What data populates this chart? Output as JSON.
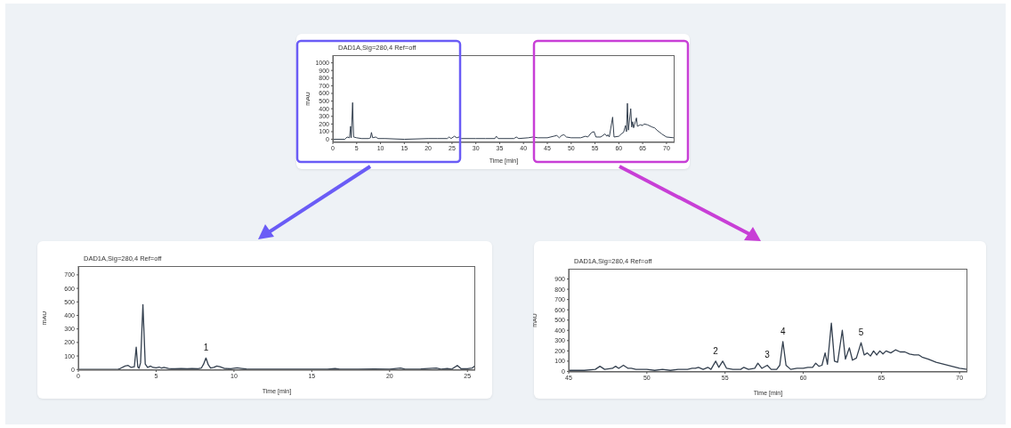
{
  "chart_data": [
    {
      "type": "line",
      "title": "DAD1A,Sig=280,4  Ref=off",
      "xlabel": "Time [min]",
      "ylabel": "mAU",
      "marker": "none",
      "xlim": [
        0,
        71.7
      ],
      "ylim": [
        -40,
        1100
      ],
      "xticks": [
        0,
        5,
        10,
        15,
        20,
        25,
        30,
        35,
        40,
        45,
        50,
        55,
        60,
        65,
        70
      ],
      "yticks": [
        0,
        100,
        200,
        300,
        400,
        500,
        600,
        700,
        800,
        900,
        1000
      ],
      "x": [
        0,
        2.5,
        3,
        3.5,
        3.72,
        3.85,
        4.15,
        4.35,
        5,
        6,
        7.5,
        7.9,
        8.1,
        8.35,
        9,
        9.5,
        11,
        15,
        20,
        22,
        24,
        24.4,
        24.8,
        25.5,
        26,
        26.5,
        27,
        30,
        32,
        34,
        34.3,
        34.7,
        38,
        38.5,
        39,
        41,
        42,
        43,
        45,
        47,
        47.5,
        48,
        48.5,
        49,
        50,
        52,
        53,
        53.5,
        54.3,
        54.8,
        55.2,
        56.2,
        57.1,
        57.5,
        57.7,
        58,
        58.7,
        59,
        60,
        60.7,
        61,
        61.4,
        61.6,
        61.8,
        62,
        62.5,
        62.7,
        62.9,
        63.1,
        63.7,
        63.9,
        64.5,
        65,
        65.3,
        66,
        67,
        67.5,
        68,
        69,
        70,
        71.5
      ],
      "series": [
        {
          "color": "#34404f",
          "values": [
            0,
            0,
            30,
            20,
            170,
            20,
            480,
            30,
            20,
            10,
            10,
            20,
            90,
            20,
            30,
            10,
            10,
            0,
            10,
            10,
            10,
            30,
            10,
            40,
            20,
            30,
            10,
            10,
            10,
            10,
            40,
            10,
            10,
            30,
            10,
            20,
            30,
            20,
            20,
            50,
            20,
            50,
            60,
            30,
            20,
            20,
            40,
            30,
            90,
            100,
            30,
            30,
            70,
            40,
            60,
            30,
            290,
            30,
            40,
            80,
            90,
            180,
            100,
            470,
            120,
            400,
            160,
            230,
            150,
            280,
            170,
            190,
            180,
            200,
            190,
            160,
            150,
            120,
            70,
            30,
            20
          ]
        }
      ]
    },
    {
      "type": "line",
      "title": "DAD1A,Sig=280,4  Ref=off",
      "xlabel": "Time [min]",
      "ylabel": "mAU",
      "marker": "none",
      "xlim": [
        0,
        25.5
      ],
      "ylim": [
        -5,
        765
      ],
      "xticks": [
        0,
        5,
        10,
        15,
        20,
        25
      ],
      "yticks": [
        0,
        100,
        200,
        300,
        400,
        500,
        600,
        700
      ],
      "annotations": [
        {
          "text": "1",
          "x": 8.2,
          "y": 85
        }
      ],
      "x": [
        0,
        2.5,
        2.7,
        3.0,
        3.2,
        3.4,
        3.6,
        3.72,
        3.82,
        3.9,
        4.0,
        4.15,
        4.3,
        4.45,
        4.65,
        4.8,
        5.0,
        5.2,
        5.35,
        5.5,
        5.8,
        6.2,
        6.6,
        7.0,
        7.3,
        7.7,
        7.9,
        8.05,
        8.2,
        8.35,
        8.5,
        8.7,
        8.9,
        9.1,
        9.4,
        9.8,
        10.2,
        10.5,
        10.8,
        11.5,
        12.5,
        13.5,
        15,
        16.0,
        16.5,
        16.8,
        18,
        19,
        20,
        20.7,
        21,
        22,
        23,
        23.3,
        23.7,
        24.0,
        24.35,
        24.6,
        25,
        25.3,
        25.5
      ],
      "series": [
        {
          "color": "#34404f",
          "values": [
            0,
            0,
            8,
            25,
            30,
            15,
            20,
            165,
            20,
            10,
            50,
            480,
            40,
            15,
            25,
            15,
            12,
            18,
            10,
            15,
            8,
            5,
            8,
            5,
            8,
            5,
            10,
            40,
            85,
            35,
            10,
            15,
            25,
            20,
            8,
            5,
            12,
            8,
            4,
            3,
            3,
            2,
            2,
            3,
            8,
            3,
            3,
            4,
            3,
            10,
            3,
            4,
            10,
            3,
            8,
            3,
            30,
            5,
            5,
            10,
            30
          ]
        }
      ]
    },
    {
      "type": "line",
      "title": "DAD1A,Sig=280,4  Ref=off",
      "xlabel": "Time [min]",
      "ylabel": "mAU",
      "marker": "none",
      "xlim": [
        45,
        70.5
      ],
      "ylim": [
        -5,
        1000
      ],
      "xticks": [
        45,
        50,
        55,
        60,
        65,
        70
      ],
      "yticks": [
        0,
        100,
        200,
        300,
        400,
        500,
        600,
        700,
        800,
        900
      ],
      "annotations": [
        {
          "text": "2",
          "x": 54.4,
          "y": 100
        },
        {
          "text": "3",
          "x": 57.7,
          "y": 60
        },
        {
          "text": "4",
          "x": 58.7,
          "y": 290
        },
        {
          "text": "5",
          "x": 63.7,
          "y": 280
        }
      ],
      "x": [
        45,
        46,
        46.7,
        47,
        47.3,
        47.8,
        48,
        48.2,
        48.5,
        48.8,
        49,
        49.3,
        50,
        50.5,
        51,
        51.5,
        52,
        52.6,
        52.9,
        53.1,
        53.3,
        53.6,
        53.9,
        54.1,
        54.4,
        54.6,
        54.85,
        55.1,
        55.5,
        56,
        56.2,
        56.5,
        56.9,
        57.1,
        57.35,
        57.7,
        57.95,
        58.3,
        58.5,
        58.7,
        58.9,
        59.2,
        59.6,
        60,
        60.3,
        60.6,
        60.8,
        61,
        61.2,
        61.4,
        61.55,
        61.8,
        62,
        62.2,
        62.5,
        62.7,
        62.95,
        63.15,
        63.4,
        63.7,
        63.9,
        64.1,
        64.3,
        64.5,
        64.7,
        64.9,
        65.1,
        65.3,
        65.6,
        65.9,
        66.2,
        66.5,
        66.8,
        67.1,
        67.4,
        67.6,
        68,
        68.5,
        69,
        69.5,
        70,
        70.5
      ],
      "series": [
        {
          "color": "#34404f",
          "values": [
            10,
            10,
            20,
            50,
            20,
            30,
            50,
            30,
            60,
            30,
            30,
            20,
            20,
            10,
            20,
            10,
            20,
            20,
            30,
            30,
            40,
            20,
            40,
            20,
            100,
            40,
            100,
            30,
            20,
            20,
            40,
            20,
            30,
            80,
            30,
            60,
            20,
            20,
            60,
            290,
            60,
            20,
            30,
            30,
            40,
            40,
            80,
            50,
            60,
            180,
            70,
            470,
            100,
            90,
            400,
            120,
            230,
            110,
            130,
            280,
            160,
            180,
            150,
            200,
            160,
            200,
            170,
            200,
            180,
            210,
            190,
            190,
            170,
            160,
            160,
            140,
            120,
            90,
            70,
            50,
            30,
            20
          ]
        }
      ]
    }
  ]
}
